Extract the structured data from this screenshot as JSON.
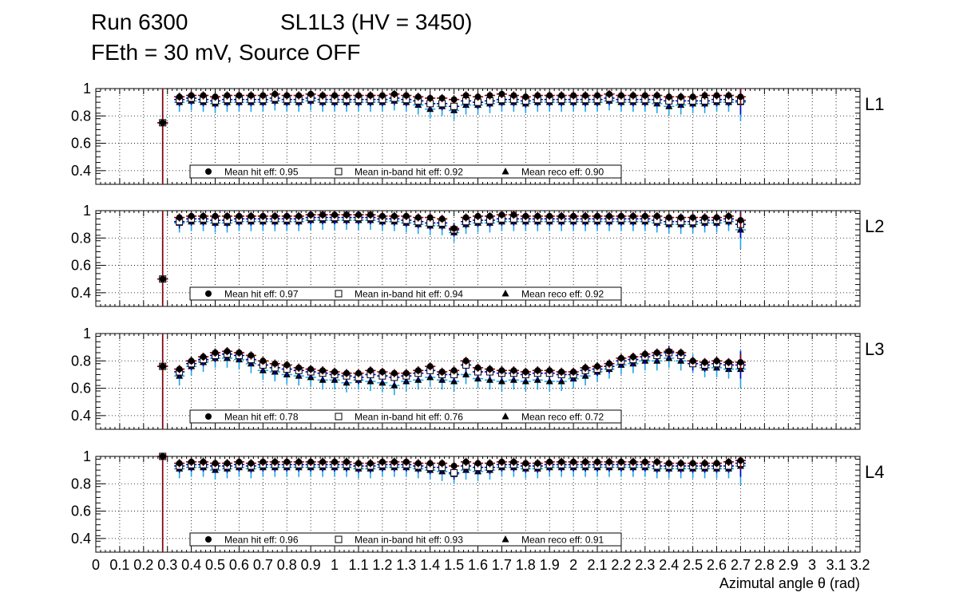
{
  "header": {
    "run": "Run 6300",
    "chamber": "SL1L3 (HV = 3450)",
    "conditions": "FEth = 30 mV, Source OFF"
  },
  "chart_data": {
    "type": "scatter",
    "xlabel": "Azimutal angle θ (rad)",
    "xlim": [
      0,
      3.2
    ],
    "x_tick_labels": [
      "0",
      "0.1",
      "0.2",
      "0.3",
      "0.4",
      "0.5",
      "0.6",
      "0.7",
      "0.8",
      "0.9",
      "1",
      "1.1",
      "1.2",
      "1.3",
      "1.4",
      "1.5",
      "1.6",
      "1.7",
      "1.8",
      "1.9",
      "2",
      "2.1",
      "2.2",
      "2.3",
      "2.4",
      "2.5",
      "2.6",
      "2.7",
      "2.8",
      "2.9",
      "3",
      "3.1",
      "3.2"
    ],
    "ylim": [
      0.3,
      1.0
    ],
    "y_tick_labels": [
      "0.4",
      "0.6",
      "0.8",
      "1"
    ],
    "colors": {
      "hit": "#8b0000",
      "inband": "#0000cc",
      "reco": "#1ea7e8",
      "marker": "#000000"
    },
    "x": [
      0.28,
      0.35,
      0.4,
      0.45,
      0.5,
      0.55,
      0.6,
      0.65,
      0.7,
      0.75,
      0.8,
      0.85,
      0.9,
      0.95,
      1.0,
      1.05,
      1.1,
      1.15,
      1.2,
      1.25,
      1.3,
      1.35,
      1.4,
      1.45,
      1.5,
      1.55,
      1.6,
      1.65,
      1.7,
      1.75,
      1.8,
      1.85,
      1.9,
      1.95,
      2.0,
      2.05,
      2.1,
      2.15,
      2.2,
      2.25,
      2.3,
      2.35,
      2.4,
      2.45,
      2.5,
      2.55,
      2.6,
      2.65,
      2.7
    ],
    "panels": [
      {
        "label": "L1",
        "legend": {
          "hit": "Mean hit  eff: 0.95",
          "inband": "Mean in-band hit eff: 0.92",
          "reco": "Mean reco eff: 0.90"
        },
        "series": [
          {
            "name": "hit",
            "values": [
              0.75,
              0.94,
              0.95,
              0.95,
              0.94,
              0.95,
              0.95,
              0.95,
              0.95,
              0.96,
              0.95,
              0.95,
              0.96,
              0.95,
              0.95,
              0.95,
              0.95,
              0.95,
              0.95,
              0.96,
              0.95,
              0.94,
              0.93,
              0.93,
              0.92,
              0.95,
              0.94,
              0.95,
              0.96,
              0.95,
              0.94,
              0.95,
              0.95,
              0.95,
              0.95,
              0.95,
              0.95,
              0.96,
              0.95,
              0.95,
              0.95,
              0.95,
              0.94,
              0.94,
              0.94,
              0.95,
              0.95,
              0.95,
              0.94
            ]
          },
          {
            "name": "inband",
            "values": [
              0.75,
              0.92,
              0.93,
              0.92,
              0.91,
              0.92,
              0.92,
              0.92,
              0.92,
              0.93,
              0.92,
              0.92,
              0.93,
              0.92,
              0.92,
              0.92,
              0.92,
              0.92,
              0.92,
              0.93,
              0.92,
              0.91,
              0.89,
              0.89,
              0.87,
              0.91,
              0.9,
              0.91,
              0.92,
              0.92,
              0.91,
              0.92,
              0.92,
              0.92,
              0.92,
              0.92,
              0.92,
              0.93,
              0.92,
              0.92,
              0.92,
              0.92,
              0.91,
              0.91,
              0.91,
              0.91,
              0.92,
              0.92,
              0.91
            ]
          },
          {
            "name": "reco",
            "values": [
              0.75,
              0.9,
              0.91,
              0.9,
              0.89,
              0.9,
              0.9,
              0.9,
              0.9,
              0.91,
              0.9,
              0.9,
              0.91,
              0.9,
              0.9,
              0.9,
              0.9,
              0.9,
              0.9,
              0.91,
              0.9,
              0.88,
              0.85,
              0.87,
              0.84,
              0.88,
              0.88,
              0.89,
              0.9,
              0.9,
              0.89,
              0.9,
              0.9,
              0.9,
              0.9,
              0.9,
              0.9,
              0.91,
              0.9,
              0.9,
              0.9,
              0.89,
              0.87,
              0.88,
              0.89,
              0.89,
              0.9,
              0.9,
              0.9
            ]
          }
        ]
      },
      {
        "label": "L2",
        "legend": {
          "hit": "Mean hit  eff: 0.97",
          "inband": "Mean in-band hit eff: 0.94",
          "reco": "Mean reco eff: 0.92"
        },
        "series": [
          {
            "name": "hit",
            "values": [
              0.5,
              0.95,
              0.96,
              0.96,
              0.96,
              0.96,
              0.96,
              0.96,
              0.96,
              0.96,
              0.96,
              0.96,
              0.97,
              0.97,
              0.97,
              0.97,
              0.97,
              0.97,
              0.96,
              0.96,
              0.96,
              0.95,
              0.95,
              0.94,
              0.87,
              0.95,
              0.96,
              0.96,
              0.97,
              0.97,
              0.96,
              0.96,
              0.96,
              0.96,
              0.96,
              0.96,
              0.96,
              0.96,
              0.96,
              0.96,
              0.96,
              0.96,
              0.95,
              0.95,
              0.95,
              0.95,
              0.95,
              0.96,
              0.93
            ]
          },
          {
            "name": "inband",
            "values": [
              0.5,
              0.92,
              0.94,
              0.94,
              0.93,
              0.93,
              0.94,
              0.94,
              0.94,
              0.94,
              0.94,
              0.94,
              0.95,
              0.95,
              0.95,
              0.95,
              0.95,
              0.95,
              0.94,
              0.94,
              0.93,
              0.92,
              0.91,
              0.91,
              0.86,
              0.92,
              0.93,
              0.93,
              0.94,
              0.94,
              0.94,
              0.94,
              0.94,
              0.94,
              0.94,
              0.94,
              0.94,
              0.94,
              0.94,
              0.94,
              0.94,
              0.93,
              0.92,
              0.92,
              0.92,
              0.93,
              0.93,
              0.94,
              0.9
            ]
          },
          {
            "name": "reco",
            "values": [
              0.5,
              0.91,
              0.92,
              0.92,
              0.91,
              0.91,
              0.92,
              0.92,
              0.92,
              0.92,
              0.92,
              0.92,
              0.93,
              0.93,
              0.93,
              0.93,
              0.93,
              0.93,
              0.92,
              0.92,
              0.91,
              0.9,
              0.89,
              0.89,
              0.84,
              0.9,
              0.91,
              0.91,
              0.92,
              0.92,
              0.92,
              0.92,
              0.92,
              0.92,
              0.92,
              0.92,
              0.92,
              0.92,
              0.92,
              0.92,
              0.92,
              0.91,
              0.9,
              0.9,
              0.9,
              0.91,
              0.91,
              0.92,
              0.86
            ]
          }
        ]
      },
      {
        "label": "L3",
        "legend": {
          "hit": "Mean hit  eff: 0.78",
          "inband": "Mean in-band hit eff: 0.76",
          "reco": "Mean reco eff: 0.72"
        },
        "series": [
          {
            "name": "hit",
            "values": [
              0.76,
              0.74,
              0.8,
              0.83,
              0.86,
              0.87,
              0.86,
              0.84,
              0.8,
              0.78,
              0.77,
              0.75,
              0.74,
              0.73,
              0.72,
              0.71,
              0.71,
              0.73,
              0.72,
              0.71,
              0.71,
              0.73,
              0.76,
              0.72,
              0.73,
              0.8,
              0.75,
              0.74,
              0.73,
              0.73,
              0.72,
              0.73,
              0.73,
              0.72,
              0.72,
              0.75,
              0.76,
              0.78,
              0.82,
              0.83,
              0.85,
              0.86,
              0.87,
              0.86,
              0.8,
              0.79,
              0.8,
              0.79,
              0.79
            ]
          },
          {
            "name": "inband",
            "values": [
              0.76,
              0.72,
              0.78,
              0.81,
              0.84,
              0.85,
              0.84,
              0.81,
              0.77,
              0.75,
              0.74,
              0.73,
              0.72,
              0.71,
              0.7,
              0.69,
              0.68,
              0.7,
              0.69,
              0.68,
              0.69,
              0.71,
              0.73,
              0.7,
              0.7,
              0.77,
              0.72,
              0.72,
              0.71,
              0.71,
              0.7,
              0.71,
              0.71,
              0.7,
              0.7,
              0.73,
              0.74,
              0.76,
              0.8,
              0.81,
              0.83,
              0.84,
              0.86,
              0.84,
              0.78,
              0.77,
              0.78,
              0.77,
              0.77
            ]
          },
          {
            "name": "reco",
            "values": [
              0.76,
              0.69,
              0.76,
              0.79,
              0.82,
              0.82,
              0.81,
              0.78,
              0.73,
              0.72,
              0.7,
              0.69,
              0.68,
              0.66,
              0.66,
              0.64,
              0.66,
              0.65,
              0.64,
              0.62,
              0.65,
              0.66,
              0.68,
              0.66,
              0.65,
              0.7,
              0.67,
              0.66,
              0.65,
              0.66,
              0.65,
              0.66,
              0.65,
              0.65,
              0.67,
              0.69,
              0.72,
              0.74,
              0.77,
              0.78,
              0.8,
              0.8,
              0.82,
              0.8,
              0.78,
              0.75,
              0.75,
              0.74,
              0.74
            ]
          }
        ]
      },
      {
        "label": "L4",
        "legend": {
          "hit": "Mean hit  eff: 0.96",
          "inband": "Mean in-band hit eff: 0.93",
          "reco": "Mean reco eff: 0.91"
        },
        "series": [
          {
            "name": "hit",
            "values": [
              1.0,
              0.95,
              0.96,
              0.96,
              0.95,
              0.95,
              0.96,
              0.95,
              0.96,
              0.96,
              0.96,
              0.96,
              0.96,
              0.96,
              0.96,
              0.96,
              0.95,
              0.95,
              0.96,
              0.96,
              0.96,
              0.95,
              0.95,
              0.95,
              0.93,
              0.96,
              0.95,
              0.95,
              0.96,
              0.96,
              0.95,
              0.95,
              0.96,
              0.96,
              0.96,
              0.96,
              0.96,
              0.96,
              0.96,
              0.96,
              0.96,
              0.96,
              0.95,
              0.95,
              0.95,
              0.95,
              0.95,
              0.96,
              0.97
            ]
          },
          {
            "name": "inband",
            "values": [
              1.0,
              0.93,
              0.94,
              0.94,
              0.93,
              0.93,
              0.94,
              0.93,
              0.94,
              0.94,
              0.94,
              0.94,
              0.94,
              0.94,
              0.94,
              0.94,
              0.93,
              0.93,
              0.94,
              0.94,
              0.94,
              0.93,
              0.92,
              0.92,
              0.88,
              0.93,
              0.92,
              0.92,
              0.94,
              0.94,
              0.93,
              0.93,
              0.94,
              0.94,
              0.94,
              0.94,
              0.94,
              0.94,
              0.94,
              0.94,
              0.94,
              0.93,
              0.93,
              0.93,
              0.93,
              0.93,
              0.93,
              0.93,
              0.95
            ]
          },
          {
            "name": "reco",
            "values": [
              1.0,
              0.91,
              0.92,
              0.92,
              0.9,
              0.91,
              0.92,
              0.91,
              0.92,
              0.92,
              0.92,
              0.92,
              0.92,
              0.92,
              0.92,
              0.92,
              0.91,
              0.91,
              0.92,
              0.92,
              0.92,
              0.91,
              0.9,
              0.89,
              0.87,
              0.9,
              0.89,
              0.9,
              0.92,
              0.92,
              0.91,
              0.91,
              0.92,
              0.92,
              0.92,
              0.92,
              0.92,
              0.92,
              0.92,
              0.92,
              0.92,
              0.91,
              0.91,
              0.91,
              0.91,
              0.91,
              0.91,
              0.91,
              0.93
            ]
          }
        ]
      }
    ]
  }
}
